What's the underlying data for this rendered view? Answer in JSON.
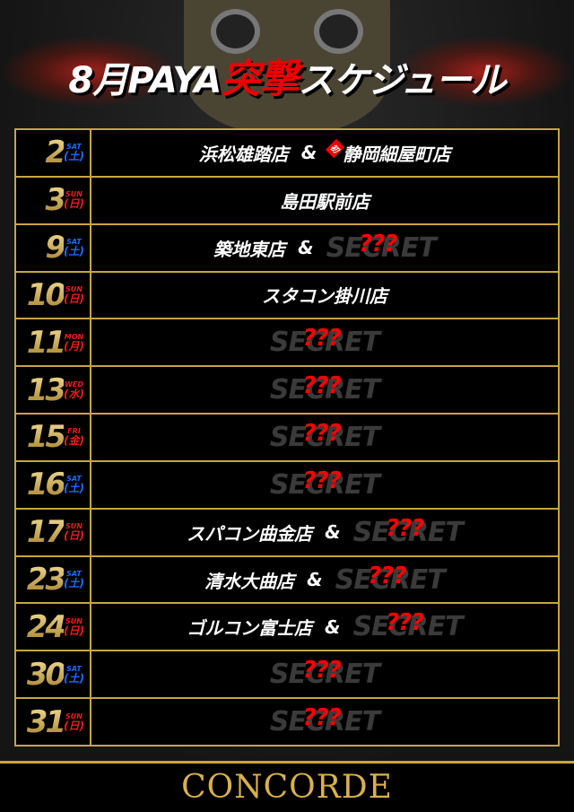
{
  "title": {
    "prefix": "8月PAYA",
    "highlight": "突撃",
    "suffix": "スケジュール"
  },
  "secret_label": "SECRET",
  "secret_mark": "???",
  "first_badge": "初",
  "amp": "&",
  "rows": [
    {
      "day": "2",
      "en": "SAT",
      "jp": "(土)",
      "c": "blue",
      "stores": [
        "浜松雄踏店"
      ],
      "first": "静岡細屋町店"
    },
    {
      "day": "3",
      "en": "SUN",
      "jp": "(日)",
      "c": "red",
      "stores": [
        "島田駅前店"
      ]
    },
    {
      "day": "9",
      "en": "SAT",
      "jp": "(土)",
      "c": "blue",
      "stores": [
        "築地東店"
      ],
      "secret": true
    },
    {
      "day": "10",
      "en": "SUN",
      "jp": "(日)",
      "c": "red",
      "stores": [
        "スタコン掛川店"
      ]
    },
    {
      "day": "11",
      "en": "MON",
      "jp": "(月)",
      "c": "red",
      "stores": [],
      "secret": true
    },
    {
      "day": "13",
      "en": "WED",
      "jp": "(水)",
      "c": "red",
      "stores": [],
      "secret": true
    },
    {
      "day": "15",
      "en": "FRI",
      "jp": "(金)",
      "c": "red",
      "stores": [],
      "secret": true
    },
    {
      "day": "16",
      "en": "SAT",
      "jp": "(土)",
      "c": "blue",
      "stores": [],
      "secret": true
    },
    {
      "day": "17",
      "en": "SUN",
      "jp": "(日)",
      "c": "red",
      "stores": [
        "スパコン曲金店"
      ],
      "secret": true
    },
    {
      "day": "23",
      "en": "SAT",
      "jp": "(土)",
      "c": "blue",
      "stores": [
        "清水大曲店"
      ],
      "secret": true
    },
    {
      "day": "24",
      "en": "SUN",
      "jp": "(日)",
      "c": "red",
      "stores": [
        "ゴルコン富士店"
      ],
      "secret": true
    },
    {
      "day": "30",
      "en": "SAT",
      "jp": "(土)",
      "c": "blue",
      "stores": [],
      "secret": true
    },
    {
      "day": "31",
      "en": "SUN",
      "jp": "(日)",
      "c": "red",
      "stores": [],
      "secret": true
    }
  ],
  "footer": {
    "logo": "CONCORDE"
  },
  "colors": {
    "gold": "#c9a444",
    "sat": "#1a6cff",
    "sun": "#f01a1a",
    "accent": "#e00000"
  }
}
